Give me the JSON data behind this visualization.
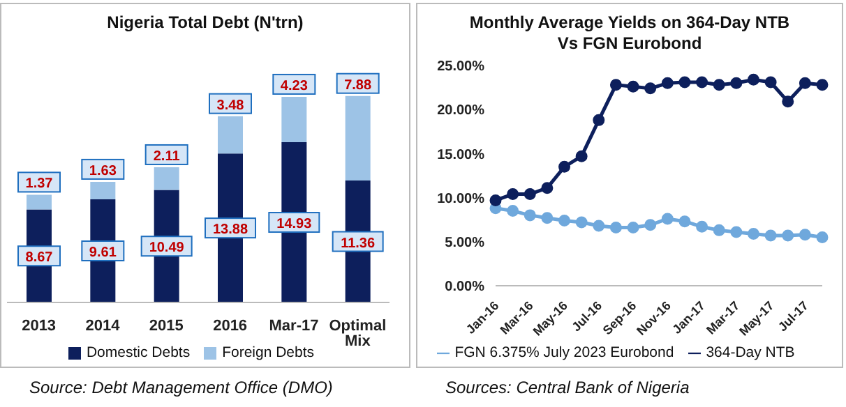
{
  "chart_data": [
    {
      "type": "bar",
      "title": "Nigeria Total Debt (N'trn)",
      "categories": [
        "2013",
        "2014",
        "2015",
        "2016",
        "Mar-17",
        "Optimal Mix"
      ],
      "stacked": true,
      "data_labels": true,
      "legend": "bottom",
      "grid": false,
      "tick_labels": "x",
      "series": [
        {
          "name": "Domestic Debts",
          "color": "#0d1f5c",
          "values": [
            8.67,
            9.61,
            10.49,
            13.88,
            14.93,
            11.36
          ]
        },
        {
          "name": "Foreign Debts",
          "color": "#9dc3e6",
          "values": [
            1.37,
            1.63,
            2.11,
            3.48,
            4.23,
            7.88
          ]
        }
      ],
      "annotations": [
        "Source:  Debt Management Office (DMO)"
      ]
    },
    {
      "type": "line",
      "title": "Monthly Average Yields on 364-Day NTB Vs FGN Eurobond",
      "categories": [
        "Jan-16",
        null,
        "Mar-16",
        null,
        "May-16",
        null,
        "Jul-16",
        null,
        "Sep-16",
        null,
        "Nov-16",
        null,
        "Jan-17",
        null,
        "Mar-17",
        null,
        "May-17",
        null,
        "Jul-17",
        null
      ],
      "marker": "circle",
      "legend": "bottom",
      "grid": false,
      "ylim": [
        0,
        25
      ],
      "yticks": [
        {
          "value": 0,
          "label": "0.00%"
        },
        {
          "value": 5,
          "label": "5.00%"
        },
        {
          "value": 10,
          "label": "10.00%"
        },
        {
          "value": 15,
          "label": "15.00%"
        },
        {
          "value": 20,
          "label": "20.00%"
        },
        {
          "value": 25,
          "label": "25.00%"
        }
      ],
      "series": [
        {
          "name": "FGN 6.375% July 2023 Eurobond",
          "color": "#6fa8dc",
          "values": [
            8.8,
            8.5,
            8.0,
            7.7,
            7.4,
            7.2,
            6.8,
            6.6,
            6.6,
            6.9,
            7.6,
            7.3,
            6.7,
            6.3,
            6.1,
            5.9,
            5.7,
            5.7,
            5.8,
            5.5
          ]
        },
        {
          "name": "364-Day NTB",
          "color": "#0d1f5c",
          "values": [
            9.7,
            10.4,
            10.4,
            11.1,
            13.5,
            14.7,
            18.8,
            22.8,
            22.6,
            22.4,
            23.0,
            23.1,
            23.1,
            22.8,
            23.0,
            23.4,
            23.1,
            20.9,
            23.0,
            22.8
          ]
        }
      ],
      "annotations": [
        "Sources:  Central Bank of Nigeria"
      ]
    }
  ]
}
